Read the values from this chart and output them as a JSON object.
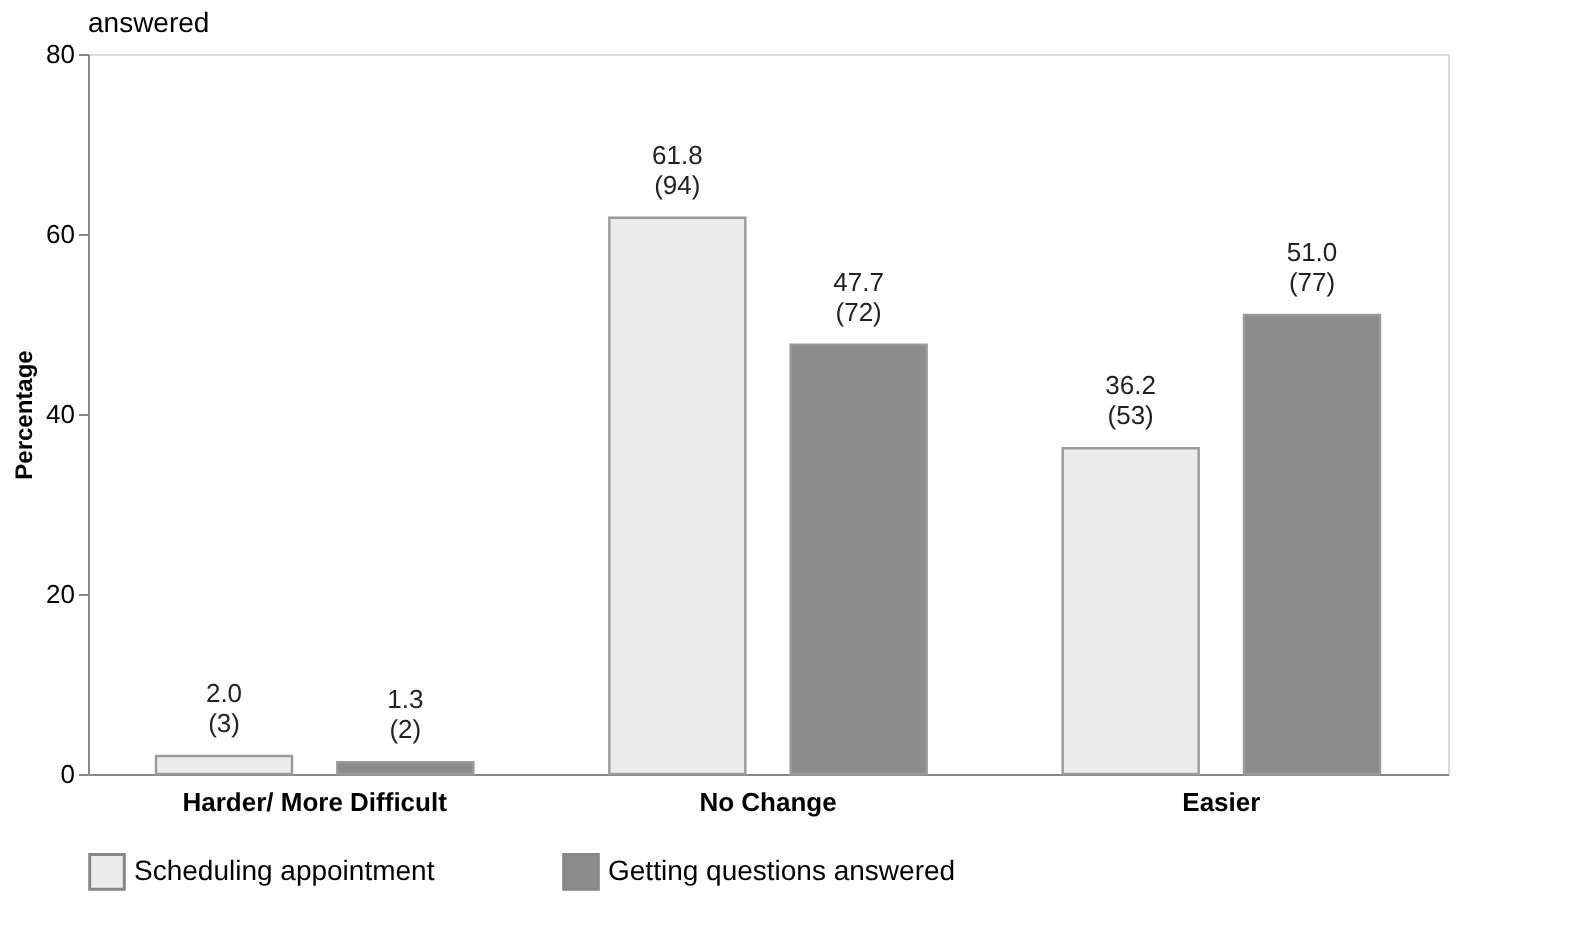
{
  "chart_data": {
    "type": "bar",
    "title": "answered",
    "ylabel": "Percentage",
    "categories": [
      "Harder/ More Difficult",
      "No Change",
      "Easier"
    ],
    "series": [
      {
        "name": "Scheduling appointment",
        "color": "#ececec",
        "values": [
          2.0,
          61.8,
          36.2
        ],
        "value_labels": [
          "2.0\n(3)",
          "61.8\n(94)",
          "36.2\n(53)"
        ]
      },
      {
        "name": "Getting questions answered",
        "color": "#8c8c8c",
        "values": [
          1.3,
          47.7,
          51.0
        ],
        "value_labels": [
          "1.3\n(2)",
          "47.7\n(72)",
          "51.0\n(77)"
        ]
      }
    ],
    "ylim": [
      0,
      80
    ],
    "yticks": [
      0,
      20,
      40,
      60,
      80
    ],
    "grid": false,
    "legend": "bottom"
  }
}
